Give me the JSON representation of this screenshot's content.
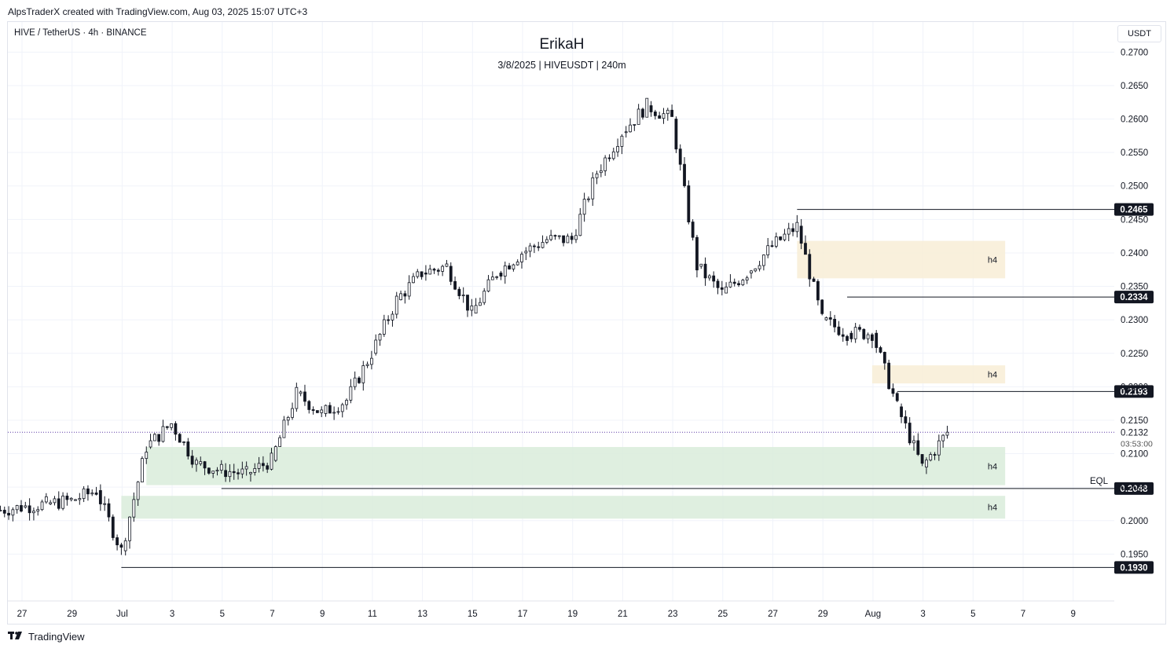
{
  "header": {
    "created_line": "AlpsTraderX created with TradingView.com, Aug 03, 2025 15:07 UTC+3"
  },
  "footer": {
    "brand": "TradingView",
    "logo_icon": "tradingview-logo-icon"
  },
  "currency_button": "USDT",
  "chart_data": {
    "type": "candlestick",
    "symbol_line": "HIVE / TetherUS · 4h · BINANCE",
    "title": "ErikaH",
    "subtitle": "3/8/2025 | HIVEUSDT | 240m",
    "x_tick_labels": [
      "27",
      "29",
      "Jul",
      "3",
      "5",
      "7",
      "9",
      "11",
      "13",
      "15",
      "17",
      "19",
      "21",
      "23",
      "25",
      "27",
      "29",
      "Aug",
      "3",
      "5",
      "7",
      "9"
    ],
    "y_tick_labels": [
      "0.2700",
      "0.2650",
      "0.2600",
      "0.2550",
      "0.2500",
      "0.2450",
      "0.2400",
      "0.2350",
      "0.2300",
      "0.2250",
      "0.2200",
      "0.2150",
      "0.2100",
      "0.2050",
      "0.2000",
      "0.1950"
    ],
    "y_ticks": [
      0.27,
      0.265,
      0.26,
      0.255,
      0.25,
      0.245,
      0.24,
      0.235,
      0.23,
      0.225,
      0.22,
      0.215,
      0.21,
      0.205,
      0.2,
      0.195
    ],
    "ylim": [
      0.188,
      0.2745
    ],
    "current_price": {
      "value": 0.2132,
      "label": "0.2132",
      "countdown": "03:53:00"
    },
    "levels": [
      {
        "value": 0.2465,
        "label": "0.2465",
        "from_date": "2025-07-28"
      },
      {
        "value": 0.2334,
        "label": "0.2334",
        "from_date": "2025-07-30"
      },
      {
        "value": 0.2193,
        "label": "0.2193",
        "from_date": "2025-08-01"
      },
      {
        "value": 0.2048,
        "label": "0.2048",
        "from_date": "2025-07-05",
        "annotation": "EQL"
      },
      {
        "value": 0.193,
        "label": "0.1930",
        "from_date": "2025-07-01"
      }
    ],
    "zones": [
      {
        "type": "supply",
        "label": "h4",
        "top": 0.2418,
        "bottom": 0.2362,
        "from_date": "2025-07-28",
        "to_date": "2025-08-05"
      },
      {
        "type": "supply",
        "label": "h4",
        "top": 0.2232,
        "bottom": 0.2205,
        "from_date": "2025-07-31",
        "to_date": "2025-08-05"
      },
      {
        "type": "demand",
        "label": "h4",
        "top": 0.211,
        "bottom": 0.2053,
        "from_date": "2025-07-02",
        "to_date": "2025-08-05"
      },
      {
        "type": "demand",
        "label": "h4",
        "top": 0.2037,
        "bottom": 0.2003,
        "from_date": "2025-07-01",
        "to_date": "2025-08-05"
      }
    ],
    "colors": {
      "supply_zone": "#f8edd6",
      "demand_zone": "#d9ecdb",
      "candle": "#131722",
      "level_line": "#131722",
      "current_price_line": "#5b3aa6",
      "label_bg": "#131722"
    },
    "daily_closes": [
      {
        "date": "2025-06-26",
        "close": 0.2015
      },
      {
        "date": "2025-06-27",
        "close": 0.202
      },
      {
        "date": "2025-06-28",
        "close": 0.2025
      },
      {
        "date": "2025-06-29",
        "close": 0.203
      },
      {
        "date": "2025-06-30",
        "close": 0.2045
      },
      {
        "date": "2025-07-01",
        "close": 0.1955
      },
      {
        "date": "2025-07-02",
        "close": 0.211
      },
      {
        "date": "2025-07-03",
        "close": 0.2145
      },
      {
        "date": "2025-07-04",
        "close": 0.2085
      },
      {
        "date": "2025-07-05",
        "close": 0.2075
      },
      {
        "date": "2025-07-06",
        "close": 0.207
      },
      {
        "date": "2025-07-07",
        "close": 0.209
      },
      {
        "date": "2025-07-08",
        "close": 0.219
      },
      {
        "date": "2025-07-09",
        "close": 0.216
      },
      {
        "date": "2025-07-10",
        "close": 0.218
      },
      {
        "date": "2025-07-11",
        "close": 0.225
      },
      {
        "date": "2025-07-12",
        "close": 0.233
      },
      {
        "date": "2025-07-13",
        "close": 0.237
      },
      {
        "date": "2025-07-14",
        "close": 0.238
      },
      {
        "date": "2025-07-15",
        "close": 0.231
      },
      {
        "date": "2025-07-16",
        "close": 0.237
      },
      {
        "date": "2025-07-17",
        "close": 0.24
      },
      {
        "date": "2025-07-18",
        "close": 0.242
      },
      {
        "date": "2025-07-19",
        "close": 0.242
      },
      {
        "date": "2025-07-20",
        "close": 0.252
      },
      {
        "date": "2025-07-21",
        "close": 0.258
      },
      {
        "date": "2025-07-22",
        "close": 0.262
      },
      {
        "date": "2025-07-23",
        "close": 0.26
      },
      {
        "date": "2025-07-24",
        "close": 0.238
      },
      {
        "date": "2025-07-25",
        "close": 0.234
      },
      {
        "date": "2025-07-26",
        "close": 0.237
      },
      {
        "date": "2025-07-27",
        "close": 0.241
      },
      {
        "date": "2025-07-28",
        "close": 0.244
      },
      {
        "date": "2025-07-29",
        "close": 0.23
      },
      {
        "date": "2025-07-30",
        "close": 0.228
      },
      {
        "date": "2025-07-31",
        "close": 0.228
      },
      {
        "date": "2025-08-01",
        "close": 0.217
      },
      {
        "date": "2025-08-02",
        "close": 0.208
      },
      {
        "date": "2025-08-03",
        "close": 0.2132
      }
    ]
  }
}
